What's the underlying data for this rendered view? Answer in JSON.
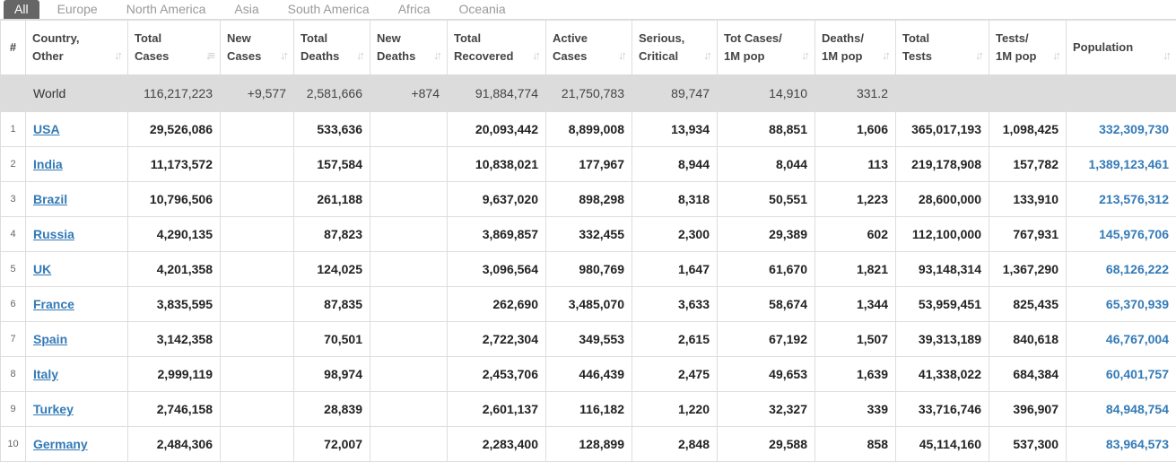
{
  "tabs": [
    "All",
    "Europe",
    "North America",
    "Asia",
    "South America",
    "Africa",
    "Oceania"
  ],
  "headers": [
    {
      "l1": "Country,",
      "l2": "Other"
    },
    {
      "l1": "Total",
      "l2": "Cases"
    },
    {
      "l1": "New",
      "l2": "Cases"
    },
    {
      "l1": "Total",
      "l2": "Deaths"
    },
    {
      "l1": "New",
      "l2": "Deaths"
    },
    {
      "l1": "Total",
      "l2": "Recovered"
    },
    {
      "l1": "Active",
      "l2": "Cases"
    },
    {
      "l1": "Serious,",
      "l2": "Critical"
    },
    {
      "l1": "Tot Cases/",
      "l2": "1M pop"
    },
    {
      "l1": "Deaths/",
      "l2": "1M pop"
    },
    {
      "l1": "Total",
      "l2": "Tests"
    },
    {
      "l1": "Tests/",
      "l2": "1M pop"
    },
    {
      "l1": "Population",
      "l2": ""
    }
  ],
  "hash_label": "#",
  "world": [
    "World",
    "116,217,223",
    "+9,577",
    "2,581,666",
    "+874",
    "91,884,774",
    "21,750,783",
    "89,747",
    "14,910",
    "331.2",
    "",
    "",
    ""
  ],
  "rows": [
    [
      "1",
      "USA",
      "29,526,086",
      "",
      "533,636",
      "",
      "20,093,442",
      "8,899,008",
      "13,934",
      "88,851",
      "1,606",
      "365,017,193",
      "1,098,425",
      "332,309,730"
    ],
    [
      "2",
      "India",
      "11,173,572",
      "",
      "157,584",
      "",
      "10,838,021",
      "177,967",
      "8,944",
      "8,044",
      "113",
      "219,178,908",
      "157,782",
      "1,389,123,461"
    ],
    [
      "3",
      "Brazil",
      "10,796,506",
      "",
      "261,188",
      "",
      "9,637,020",
      "898,298",
      "8,318",
      "50,551",
      "1,223",
      "28,600,000",
      "133,910",
      "213,576,312"
    ],
    [
      "4",
      "Russia",
      "4,290,135",
      "",
      "87,823",
      "",
      "3,869,857",
      "332,455",
      "2,300",
      "29,389",
      "602",
      "112,100,000",
      "767,931",
      "145,976,706"
    ],
    [
      "5",
      "UK",
      "4,201,358",
      "",
      "124,025",
      "",
      "3,096,564",
      "980,769",
      "1,647",
      "61,670",
      "1,821",
      "93,148,314",
      "1,367,290",
      "68,126,222"
    ],
    [
      "6",
      "France",
      "3,835,595",
      "",
      "87,835",
      "",
      "262,690",
      "3,485,070",
      "3,633",
      "58,674",
      "1,344",
      "53,959,451",
      "825,435",
      "65,370,939"
    ],
    [
      "7",
      "Spain",
      "3,142,358",
      "",
      "70,501",
      "",
      "2,722,304",
      "349,553",
      "2,615",
      "67,192",
      "1,507",
      "39,313,189",
      "840,618",
      "46,767,004"
    ],
    [
      "8",
      "Italy",
      "2,999,119",
      "",
      "98,974",
      "",
      "2,453,706",
      "446,439",
      "2,475",
      "49,653",
      "1,639",
      "41,338,022",
      "684,384",
      "60,401,757"
    ],
    [
      "9",
      "Turkey",
      "2,746,158",
      "",
      "28,839",
      "",
      "2,601,137",
      "116,182",
      "1,220",
      "32,327",
      "339",
      "33,716,746",
      "396,907",
      "84,948,754"
    ],
    [
      "10",
      "Germany",
      "2,484,306",
      "",
      "72,007",
      "",
      "2,283,400",
      "128,899",
      "2,848",
      "29,588",
      "858",
      "45,114,160",
      "537,300",
      "83,964,573"
    ]
  ]
}
